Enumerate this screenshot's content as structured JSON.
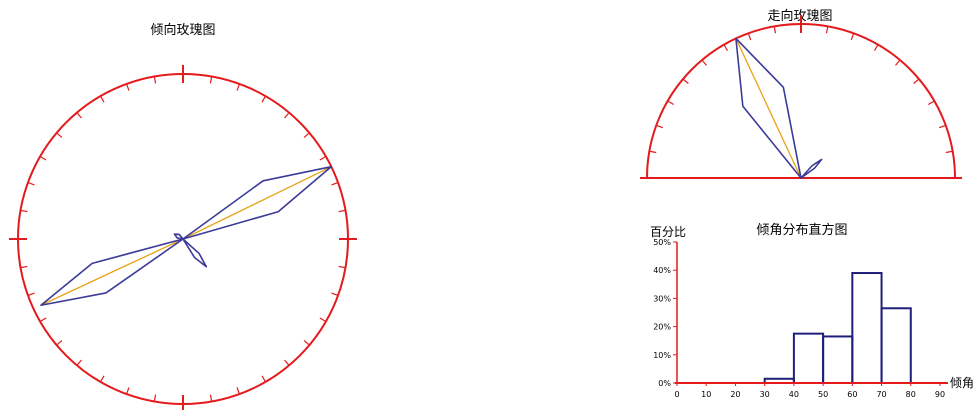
{
  "chart_data": [
    {
      "type": "rose",
      "title": "倾向玫瑰图",
      "circle_color": "#e41a1c",
      "petal_color": "#3b3b9a",
      "mean_line_color": "#e8a317",
      "petals": [
        {
          "azimuth": 64,
          "length": 1.0,
          "width_deg": 10
        },
        {
          "azimuth": 245,
          "length": 0.95,
          "width_deg": 10
        },
        {
          "azimuth": 140,
          "length": 0.22,
          "width_deg": 8
        },
        {
          "azimuth": 300,
          "length": 0.06,
          "width_deg": 20
        }
      ],
      "mean_lines": [
        {
          "azimuth": 64,
          "length": 1.0
        },
        {
          "azimuth": 245,
          "length": 0.93
        }
      ]
    },
    {
      "type": "rose",
      "title": "走向玫瑰图",
      "half": true,
      "circle_color": "#e41a1c",
      "petal_color": "#3b3b9a",
      "mean_line_color": "#e8a317",
      "petals": [
        {
          "azimuth": 335,
          "length": 1.0,
          "width_deg": 14
        },
        {
          "azimuth": 48,
          "length": 0.18,
          "width_deg": 6
        }
      ],
      "mean_lines": [
        {
          "azimuth": 335,
          "length": 1.0
        }
      ]
    },
    {
      "type": "bar",
      "title": "倾角分布直方图",
      "ylabel": "百分比",
      "xlabel": "倾角",
      "categories": [
        "0-10",
        "10-20",
        "20-30",
        "30-40",
        "40-50",
        "50-60",
        "60-70",
        "70-80",
        "80-90"
      ],
      "bin_edges": [
        0,
        10,
        20,
        30,
        40,
        50,
        60,
        70,
        80,
        90
      ],
      "values": [
        0,
        0,
        0,
        1.5,
        17.5,
        16.5,
        39,
        26.5,
        0
      ],
      "ylim": [
        0,
        50
      ],
      "yticks": [
        "0%",
        "10%",
        "20%",
        "30%",
        "40%",
        "50%"
      ],
      "xticks": [
        "0",
        "10",
        "20",
        "30",
        "40",
        "50",
        "60",
        "70",
        "80",
        "90"
      ],
      "axis_color": "#e41a1c",
      "bar_color": "#1f1f7a"
    }
  ]
}
